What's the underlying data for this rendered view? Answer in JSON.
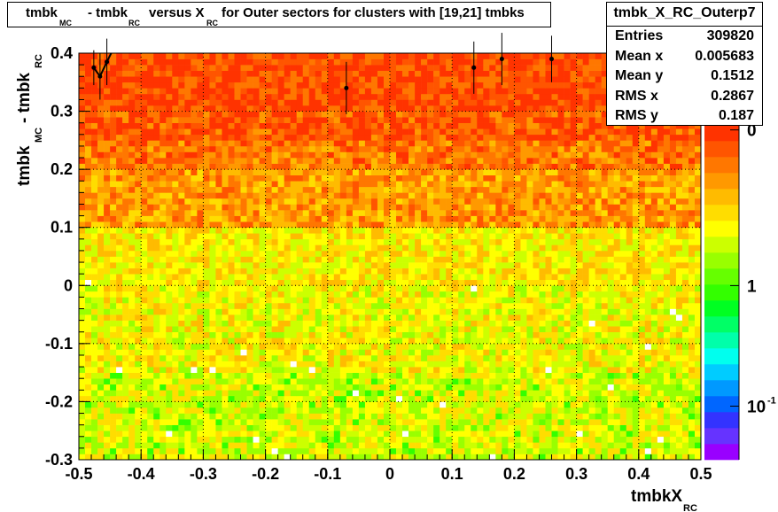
{
  "title": {
    "segments": [
      "tmbk",
      "- tmbk",
      "versus X",
      "for Outer sectors for clusters with [19,21] tmbks"
    ],
    "subscripts": [
      "MC",
      "RC",
      "RC"
    ]
  },
  "stats": {
    "name": "tmbk_X_RC_Outerp7",
    "rows": [
      {
        "label": "Entries",
        "value": "309820"
      },
      {
        "label": "Mean x",
        "value": "0.005683"
      },
      {
        "label": "Mean y",
        "value": "0.1512"
      },
      {
        "label": "RMS x",
        "value": "0.2867"
      },
      {
        "label": "RMS y",
        "value": "0.187"
      }
    ]
  },
  "colorbar": {
    "labels": [
      {
        "text": "1",
        "exp": "",
        "frac": 0.52
      },
      {
        "text": "10",
        "exp": "-1",
        "frac": 0.16
      },
      {
        "text": "0",
        "exp": "",
        "frac": 0.985
      }
    ],
    "colors": [
      "#9900ff",
      "#6633ff",
      "#3333ff",
      "#0066ff",
      "#0099ff",
      "#00ccff",
      "#00ffee",
      "#00ffaa",
      "#00ff66",
      "#00ff22",
      "#33ff00",
      "#66ff00",
      "#99ff00",
      "#ccff00",
      "#ffff00",
      "#ffdd00",
      "#ffbb00",
      "#ff9900",
      "#ff7700",
      "#ff5500",
      "#ff3300"
    ]
  },
  "chart_data": {
    "type": "heatmap",
    "title": "tmbk_MC - tmbk_RC versus X_RC for Outer sectors for clusters with [19,21] tmbks",
    "xlabel": "tmbkX",
    "xlabel_sub": "RC",
    "ylabel": "tmbk",
    "ylabel_sub1": "MC",
    "ylabel_mid": "- tmbk",
    "ylabel_sub2": "RC",
    "xlim": [
      -0.5,
      0.5
    ],
    "ylim": [
      -0.3,
      0.4
    ],
    "xticks": [
      -0.5,
      -0.4,
      -0.3,
      -0.2,
      -0.1,
      0,
      0.1,
      0.2,
      0.3,
      0.4,
      0.5
    ],
    "xtick_labels": [
      "-0.5",
      "-0.4",
      "-0.3",
      "-0.2",
      "-0.1",
      "0",
      "0.1",
      "0.2",
      "0.3",
      "0.4",
      "0.5"
    ],
    "yticks": [
      -0.3,
      -0.2,
      -0.1,
      0,
      0.1,
      0.2,
      0.3,
      0.4
    ],
    "ytick_labels": [
      "-0.3",
      "-0.2",
      "-0.1",
      "0",
      "0.1",
      "0.2",
      "0.3",
      "0.4"
    ],
    "grid": true,
    "z_scale": "log",
    "bins": {
      "nx": 100,
      "ny": 70
    },
    "band_levels": [
      {
        "ymin": 0.3,
        "ymax": 0.4,
        "level": 19.5
      },
      {
        "ymin": 0.25,
        "ymax": 0.3,
        "level": 19
      },
      {
        "ymin": 0.2,
        "ymax": 0.25,
        "level": 18
      },
      {
        "ymin": 0.1,
        "ymax": 0.2,
        "level": 17
      },
      {
        "ymin": 0.0,
        "ymax": 0.1,
        "level": 14.5
      },
      {
        "ymin": -0.15,
        "ymax": 0.0,
        "level": 14
      },
      {
        "ymin": -0.3,
        "ymax": -0.15,
        "level": 13.5
      }
    ],
    "profile_points": [
      {
        "x": -0.476,
        "y": 0.375,
        "err": 0.03
      },
      {
        "x": -0.466,
        "y": 0.36,
        "err": 0.04
      },
      {
        "x": -0.455,
        "y": 0.385,
        "err": 0.04
      },
      {
        "x": -0.07,
        "y": 0.34,
        "err": 0.045
      },
      {
        "x": 0.135,
        "y": 0.375,
        "err": 0.045
      },
      {
        "x": 0.18,
        "y": 0.39,
        "err": 0.045
      },
      {
        "x": 0.26,
        "y": 0.39,
        "err": 0.04
      }
    ]
  }
}
